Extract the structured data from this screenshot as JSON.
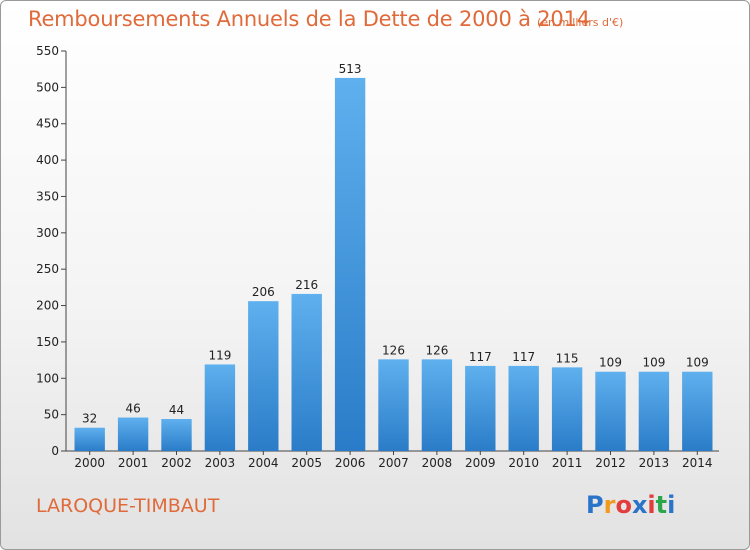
{
  "title": "Remboursements Annuels de la Dette de 2000 à 2014",
  "unit_note": "(en milliers d'€)",
  "commune": "LAROQUE-TIMBAUT",
  "logo": {
    "letters": [
      "P",
      "r",
      "o",
      "x",
      "i",
      "t",
      "i"
    ],
    "colors": [
      "#2b73c9",
      "#f29a1f",
      "#e23c3c",
      "#2b73c9",
      "#e23c3c",
      "#2ba64a",
      "#2b73c9"
    ]
  },
  "colors": {
    "bar": "#3d8fdb",
    "bar_light": "#5fb0ee",
    "accent": "#e06a3a"
  },
  "chart_data": {
    "type": "bar",
    "title": "Remboursements Annuels de la Dette de 2000 à 2014",
    "categories": [
      "2000",
      "2001",
      "2002",
      "2003",
      "2004",
      "2005",
      "2006",
      "2007",
      "2008",
      "2009",
      "2010",
      "2011",
      "2012",
      "2013",
      "2014"
    ],
    "values": [
      32,
      46,
      44,
      119,
      206,
      216,
      513,
      126,
      126,
      117,
      117,
      115,
      109,
      109,
      109
    ],
    "ylim": [
      0,
      550
    ],
    "yticks": [
      0,
      50,
      100,
      150,
      200,
      250,
      300,
      350,
      400,
      450,
      500,
      550
    ],
    "grid": false,
    "xlabel": "",
    "ylabel": ""
  }
}
